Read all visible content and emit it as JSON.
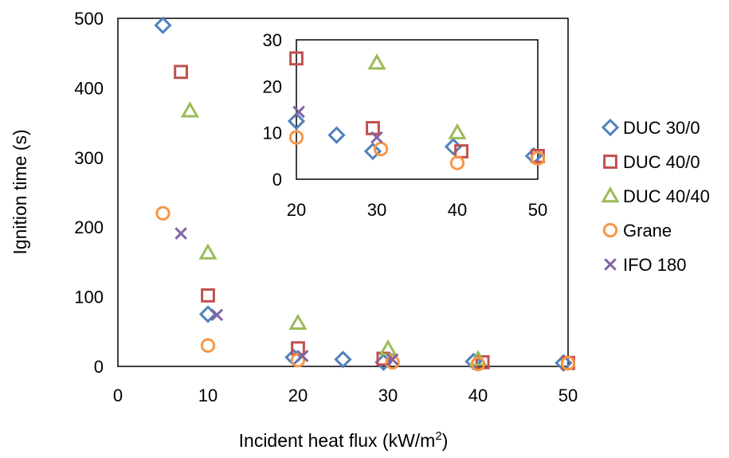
{
  "chart_data": [
    {
      "type": "scatter",
      "title": "",
      "xlabel": "Incident heat flux (kW/m",
      "xlabel_sup": "2",
      "xlabel_end": ")",
      "ylabel": "Ignition time (s)",
      "xlim": [
        0,
        50
      ],
      "ylim": [
        0,
        500
      ],
      "xticks": [
        "0",
        "10",
        "20",
        "30",
        "40",
        "50"
      ],
      "yticks": [
        "0",
        "100",
        "200",
        "300",
        "400",
        "500"
      ],
      "grid": false,
      "legend": "right",
      "series": [
        {
          "name": "DUC 30/0",
          "marker": "diamond",
          "color": "#4F81BD",
          "x": [
            5,
            10,
            19.5,
            25,
            29.5,
            39.5,
            49.5
          ],
          "y": [
            490,
            75,
            13,
            10,
            6,
            7,
            5
          ]
        },
        {
          "name": "DUC 40/0",
          "marker": "square",
          "color": "#C0504D",
          "x": [
            7,
            10,
            20,
            29.5,
            40.5,
            50
          ],
          "y": [
            423,
            102,
            26,
            11,
            6,
            5
          ]
        },
        {
          "name": "DUC 40/40",
          "marker": "triangle",
          "color": "#9BBB59",
          "x": [
            8,
            10,
            20,
            30,
            40
          ],
          "y": [
            367,
            163,
            62,
            25,
            10
          ]
        },
        {
          "name": "Grane",
          "marker": "circle",
          "color": "#F79646",
          "x": [
            5,
            10,
            20,
            30.5,
            40,
            50
          ],
          "y": [
            220,
            30,
            9,
            6,
            3.5,
            4.5
          ]
        },
        {
          "name": "IFO 180",
          "marker": "x",
          "color": "#8064A2",
          "x": [
            7,
            11,
            20.5,
            30.5
          ],
          "y": [
            191,
            74,
            15,
            10
          ]
        }
      ]
    },
    {
      "type": "scatter",
      "title": "",
      "xlabel": "",
      "ylabel": "",
      "xlim": [
        20,
        50
      ],
      "ylim": [
        0,
        30
      ],
      "xticks": [
        "20",
        "30",
        "40",
        "50"
      ],
      "yticks": [
        "0",
        "10",
        "20",
        "30"
      ],
      "grid": false,
      "legend": "none",
      "series": [
        {
          "name": "DUC 30/0",
          "marker": "diamond",
          "color": "#4F81BD",
          "x": [
            20,
            25,
            29.5,
            39.5,
            49.5
          ],
          "y": [
            12.5,
            9.5,
            6,
            7,
            5
          ]
        },
        {
          "name": "DUC 40/0",
          "marker": "square",
          "color": "#C0504D",
          "x": [
            20,
            29.5,
            40.5,
            50
          ],
          "y": [
            26,
            11,
            6,
            5
          ]
        },
        {
          "name": "DUC 40/40",
          "marker": "triangle",
          "color": "#9BBB59",
          "x": [
            30,
            40
          ],
          "y": [
            25,
            10
          ]
        },
        {
          "name": "Grane",
          "marker": "circle",
          "color": "#F79646",
          "x": [
            20,
            30.5,
            40,
            50
          ],
          "y": [
            9,
            6.5,
            3.5,
            4.5
          ]
        },
        {
          "name": "IFO 180",
          "marker": "x",
          "color": "#8064A2",
          "x": [
            20.3,
            30
          ],
          "y": [
            14.5,
            9
          ]
        }
      ]
    }
  ]
}
